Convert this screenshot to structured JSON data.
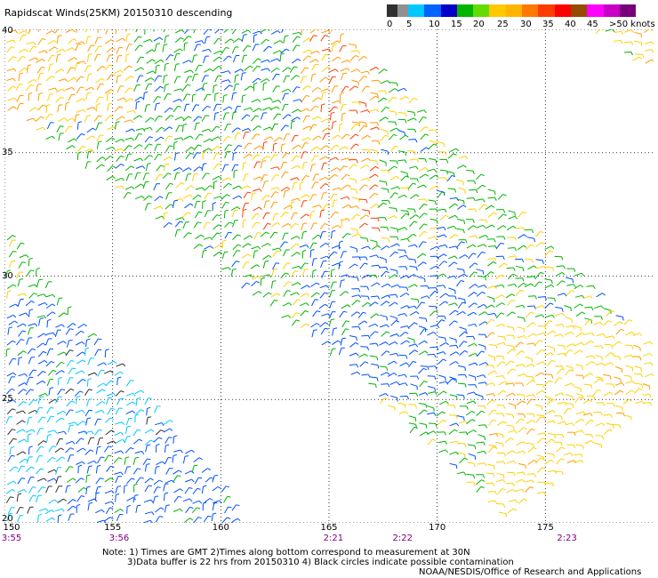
{
  "title": "Rapidscat Winds(25KM) 20150310 descending",
  "legend": {
    "colors": [
      "#303030",
      "#909090",
      "#00c8ff",
      "#0064ff",
      "#0000c8",
      "#00b400",
      "#64dc00",
      "#ffc800",
      "#ffb400",
      "#ff7800",
      "#ff3c00",
      "#ff0000",
      "#964b00",
      "#ff00ff",
      "#c800c8",
      "#780078"
    ],
    "labels": [
      "0",
      "5",
      "10",
      "15",
      "20",
      "25",
      "30",
      "35",
      "40",
      "45",
      ">50 knots"
    ]
  },
  "map": {
    "lon_range": [
      150,
      180
    ],
    "lat_range": [
      20,
      40
    ],
    "lon_ticks": [
      "150",
      "155",
      "160",
      "165",
      "170",
      "175"
    ],
    "lat_ticks": [
      "40",
      "35",
      "30",
      "25",
      "20"
    ],
    "pass_times": [
      {
        "label": "3:55",
        "lon": 150.0
      },
      {
        "label": "3:56",
        "lon": 155.3
      },
      {
        "label": "2:21",
        "lon": 165.2
      },
      {
        "label": "2:22",
        "lon": 168.4
      },
      {
        "label": "2:23",
        "lon": 176.0
      }
    ]
  },
  "notes": {
    "line1": "Note: 1) Times are GMT 2)Times along bottom correspond to measurement at 30N",
    "line2": "3)Data buffer is 22 hrs from 20150310 4) Black circles indicate possible contamination",
    "credit": "NOAA/NESDIS/Office of Research and Applications"
  }
}
